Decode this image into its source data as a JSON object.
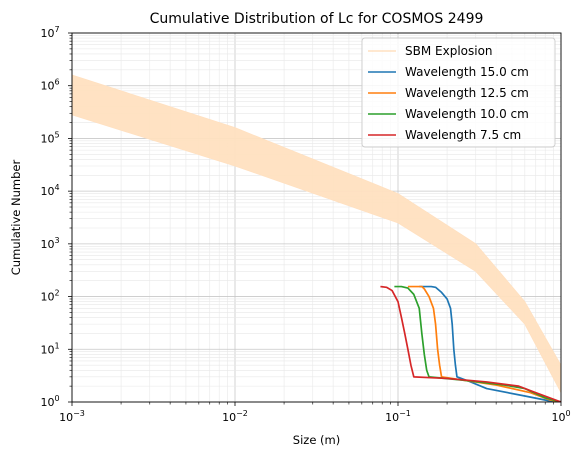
{
  "chart_data": {
    "type": "line",
    "title": "Cumulative Distribution of Lc for COSMOS 2499",
    "xlabel": "Size (m)",
    "ylabel": "Cumulative Number",
    "xscale": "log",
    "yscale": "log",
    "xlim": [
      0.001,
      1
    ],
    "ylim": [
      1,
      10000000
    ],
    "grid": true,
    "legend_position": "upper-right",
    "x_ticks": [
      {
        "value": 0.001,
        "base": "10",
        "exp": "−3"
      },
      {
        "value": 0.01,
        "base": "10",
        "exp": "−2"
      },
      {
        "value": 0.1,
        "base": "10",
        "exp": "−1"
      },
      {
        "value": 1,
        "base": "10",
        "exp": "0"
      }
    ],
    "y_ticks": [
      {
        "value": 1,
        "base": "10",
        "exp": "0"
      },
      {
        "value": 10,
        "base": "10",
        "exp": "1"
      },
      {
        "value": 100,
        "base": "10",
        "exp": "2"
      },
      {
        "value": 1000,
        "base": "10",
        "exp": "3"
      },
      {
        "value": 10000,
        "base": "10",
        "exp": "4"
      },
      {
        "value": 100000,
        "base": "10",
        "exp": "5"
      },
      {
        "value": 1000000,
        "base": "10",
        "exp": "6"
      },
      {
        "value": 10000000,
        "base": "10",
        "exp": "7"
      }
    ],
    "sbm_band": {
      "name": "SBM Explosion",
      "color": "#ffe0c0",
      "upper": [
        [
          0.001,
          1600000
        ],
        [
          0.01,
          160000
        ],
        [
          0.1,
          9000
        ],
        [
          0.3,
          1000
        ],
        [
          0.6,
          80
        ],
        [
          1,
          5
        ]
      ],
      "lower": [
        [
          0.001,
          280000
        ],
        [
          0.01,
          30000
        ],
        [
          0.1,
          2500
        ],
        [
          0.3,
          300
        ],
        [
          0.6,
          30
        ],
        [
          1,
          1.5
        ]
      ]
    },
    "series": [
      {
        "name": "Wavelength 15.0 cm",
        "color": "#1f77b4",
        "points": [
          [
            0.135,
            155
          ],
          [
            0.15,
            155
          ],
          [
            0.16,
            155
          ],
          [
            0.17,
            150
          ],
          [
            0.185,
            120
          ],
          [
            0.2,
            90
          ],
          [
            0.21,
            60
          ],
          [
            0.215,
            30
          ],
          [
            0.22,
            10
          ],
          [
            0.225,
            5
          ],
          [
            0.23,
            3
          ],
          [
            0.27,
            2.5
          ],
          [
            0.35,
            1.8
          ],
          [
            0.6,
            1.3
          ],
          [
            0.85,
            1.05
          ],
          [
            1,
            1
          ]
        ]
      },
      {
        "name": "Wavelength 12.5 cm",
        "color": "#ff7f0e",
        "points": [
          [
            0.115,
            155
          ],
          [
            0.13,
            155
          ],
          [
            0.14,
            155
          ],
          [
            0.145,
            140
          ],
          [
            0.155,
            100
          ],
          [
            0.165,
            60
          ],
          [
            0.17,
            30
          ],
          [
            0.175,
            10
          ],
          [
            0.18,
            5
          ],
          [
            0.185,
            3
          ],
          [
            0.25,
            2.6
          ],
          [
            0.4,
            2.1
          ],
          [
            0.65,
            1.5
          ],
          [
            0.85,
            1.1
          ],
          [
            1,
            1
          ]
        ]
      },
      {
        "name": "Wavelength 10.0 cm",
        "color": "#2ca02c",
        "points": [
          [
            0.095,
            155
          ],
          [
            0.105,
            155
          ],
          [
            0.115,
            145
          ],
          [
            0.125,
            110
          ],
          [
            0.135,
            60
          ],
          [
            0.14,
            20
          ],
          [
            0.145,
            8
          ],
          [
            0.15,
            4
          ],
          [
            0.155,
            3
          ],
          [
            0.25,
            2.6
          ],
          [
            0.45,
            2.1
          ],
          [
            0.6,
            1.8
          ],
          [
            0.8,
            1.2
          ],
          [
            1,
            1
          ]
        ]
      },
      {
        "name": "Wavelength 7.5 cm",
        "color": "#d62728",
        "points": [
          [
            0.078,
            155
          ],
          [
            0.085,
            150
          ],
          [
            0.092,
            130
          ],
          [
            0.1,
            80
          ],
          [
            0.105,
            40
          ],
          [
            0.11,
            20
          ],
          [
            0.115,
            10
          ],
          [
            0.12,
            5
          ],
          [
            0.125,
            3
          ],
          [
            0.2,
            2.8
          ],
          [
            0.35,
            2.4
          ],
          [
            0.55,
            2.0
          ],
          [
            0.7,
            1.5
          ],
          [
            1,
            1
          ]
        ]
      }
    ]
  }
}
